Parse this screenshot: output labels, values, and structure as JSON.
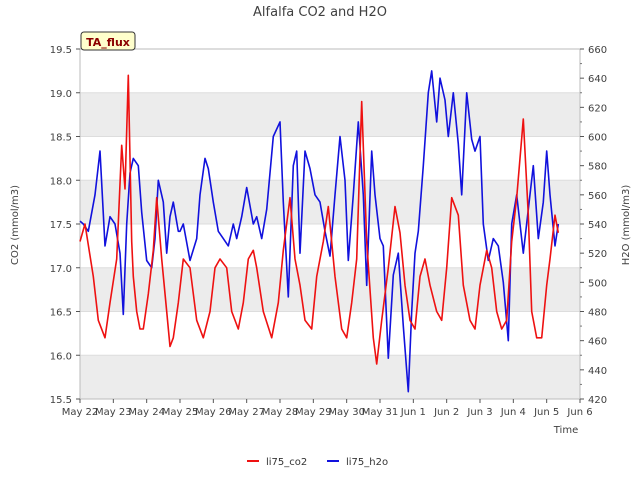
{
  "chart_data": {
    "type": "line",
    "title": "Alfalfa CO2 and H2O",
    "xlabel": "Time",
    "ylabel_left": "CO2 (mmol/m3)",
    "ylabel_right": "H2O (mmol/m3)",
    "annotation": "TA_flux",
    "x_ticks": [
      "May 22",
      "May 23",
      "May 24",
      "May 25",
      "May 26",
      "May 27",
      "May 28",
      "May 29",
      "May 30",
      "May 31",
      "Jun 1",
      "Jun 2",
      "Jun 3",
      "Jun 4",
      "Jun 5",
      "Jun 6"
    ],
    "y_left_ticks": [
      "15.5",
      "16.0",
      "16.5",
      "17.0",
      "17.5",
      "18.0",
      "18.5",
      "19.0",
      "19.5"
    ],
    "y_right_ticks": [
      "420",
      "440",
      "460",
      "480",
      "500",
      "520",
      "540",
      "560",
      "580",
      "600",
      "620",
      "640",
      "660"
    ],
    "ylim_left": [
      15.5,
      19.5
    ],
    "ylim_right": [
      420,
      660
    ],
    "xlim_days": [
      0,
      15
    ],
    "grid": "horizontal bands",
    "legend_position": "bottom-center",
    "colors": {
      "li75_co2": "#ee1111",
      "li75_h2o": "#1111dd",
      "band": "#ececec",
      "annotation_bg": "#ffffcc",
      "annotation_text": "#8b0000"
    },
    "series": [
      {
        "name": "li75_co2",
        "axis": "left",
        "x": [
          0.0,
          0.15,
          0.4,
          0.55,
          0.75,
          0.9,
          1.1,
          1.25,
          1.35,
          1.45,
          1.55,
          1.6,
          1.7,
          1.8,
          1.9,
          2.05,
          2.2,
          2.3,
          2.45,
          2.6,
          2.7,
          2.8,
          2.95,
          3.1,
          3.3,
          3.5,
          3.7,
          3.9,
          4.05,
          4.2,
          4.4,
          4.55,
          4.75,
          4.9,
          5.05,
          5.2,
          5.3,
          5.5,
          5.75,
          5.95,
          6.1,
          6.3,
          6.45,
          6.6,
          6.75,
          6.95,
          7.1,
          7.3,
          7.45,
          7.65,
          7.85,
          8.0,
          8.15,
          8.3,
          8.45,
          8.6,
          8.8,
          8.9,
          9.05,
          9.25,
          9.45,
          9.6,
          9.75,
          9.9,
          10.05,
          10.2,
          10.35,
          10.5,
          10.7,
          10.85,
          11.0,
          11.15,
          11.35,
          11.5,
          11.7,
          11.85,
          12.0,
          12.2,
          12.35,
          12.5,
          12.65,
          12.8,
          12.95,
          13.1,
          13.3,
          13.45,
          13.55,
          13.7,
          13.85,
          14.0,
          14.1,
          14.25,
          14.35
        ],
        "y": [
          17.3,
          17.5,
          16.9,
          16.4,
          16.2,
          16.6,
          17.1,
          18.4,
          17.9,
          19.2,
          17.3,
          16.9,
          16.5,
          16.3,
          16.3,
          16.7,
          17.2,
          17.8,
          17.1,
          16.5,
          16.1,
          16.2,
          16.6,
          17.1,
          17.0,
          16.4,
          16.2,
          16.5,
          17.0,
          17.1,
          17.0,
          16.5,
          16.3,
          16.6,
          17.1,
          17.2,
          17.0,
          16.5,
          16.2,
          16.6,
          17.2,
          17.8,
          17.1,
          16.8,
          16.4,
          16.3,
          16.9,
          17.3,
          17.7,
          16.9,
          16.3,
          16.2,
          16.6,
          17.1,
          18.9,
          17.3,
          16.2,
          15.9,
          16.4,
          17.0,
          17.7,
          17.4,
          16.8,
          16.4,
          16.3,
          16.9,
          17.1,
          16.8,
          16.5,
          16.4,
          17.0,
          17.8,
          17.6,
          16.8,
          16.4,
          16.3,
          16.8,
          17.2,
          17.0,
          16.5,
          16.3,
          16.4,
          17.3,
          17.8,
          18.7,
          17.6,
          16.5,
          16.2,
          16.2,
          16.8,
          17.1,
          17.6,
          17.4
        ]
      },
      {
        "name": "li75_h2o",
        "axis": "right",
        "x": [
          0.0,
          0.1,
          0.25,
          0.45,
          0.6,
          0.75,
          0.9,
          1.05,
          1.2,
          1.3,
          1.4,
          1.5,
          1.6,
          1.75,
          1.85,
          2.0,
          2.15,
          2.25,
          2.35,
          2.5,
          2.6,
          2.7,
          2.8,
          2.95,
          3.0,
          3.1,
          3.3,
          3.5,
          3.6,
          3.75,
          3.85,
          4.0,
          4.15,
          4.3,
          4.45,
          4.6,
          4.7,
          4.85,
          5.0,
          5.2,
          5.3,
          5.45,
          5.6,
          5.8,
          6.0,
          6.1,
          6.25,
          6.4,
          6.5,
          6.6,
          6.75,
          6.9,
          7.05,
          7.2,
          7.35,
          7.5,
          7.65,
          7.8,
          7.95,
          8.05,
          8.2,
          8.35,
          8.5,
          8.6,
          8.75,
          8.85,
          9.0,
          9.1,
          9.25,
          9.4,
          9.55,
          9.7,
          9.85,
          9.95,
          10.05,
          10.15,
          10.3,
          10.45,
          10.55,
          10.7,
          10.8,
          10.95,
          11.05,
          11.2,
          11.35,
          11.45,
          11.6,
          11.75,
          11.85,
          12.0,
          12.1,
          12.25,
          12.4,
          12.55,
          12.7,
          12.85,
          12.95,
          13.1,
          13.3,
          13.45,
          13.6,
          13.75,
          13.9,
          14.0,
          14.1,
          14.25,
          14.35
        ],
        "y": [
          542,
          540,
          535,
          560,
          590,
          525,
          545,
          540,
          520,
          478,
          540,
          575,
          585,
          580,
          548,
          515,
          510,
          530,
          570,
          555,
          520,
          545,
          555,
          535,
          535,
          540,
          515,
          530,
          560,
          585,
          578,
          555,
          535,
          530,
          525,
          540,
          530,
          545,
          565,
          540,
          545,
          530,
          550,
          600,
          610,
          555,
          490,
          580,
          590,
          520,
          590,
          578,
          560,
          555,
          535,
          518,
          560,
          600,
          570,
          515,
          560,
          610,
          560,
          498,
          590,
          560,
          530,
          525,
          448,
          505,
          520,
          470,
          425,
          480,
          520,
          535,
          580,
          630,
          645,
          610,
          640,
          625,
          600,
          630,
          595,
          560,
          630,
          598,
          590,
          600,
          540,
          515,
          530,
          525,
          500,
          460,
          540,
          560,
          520,
          550,
          580,
          530,
          555,
          590,
          560,
          525,
          540
        ]
      }
    ]
  }
}
